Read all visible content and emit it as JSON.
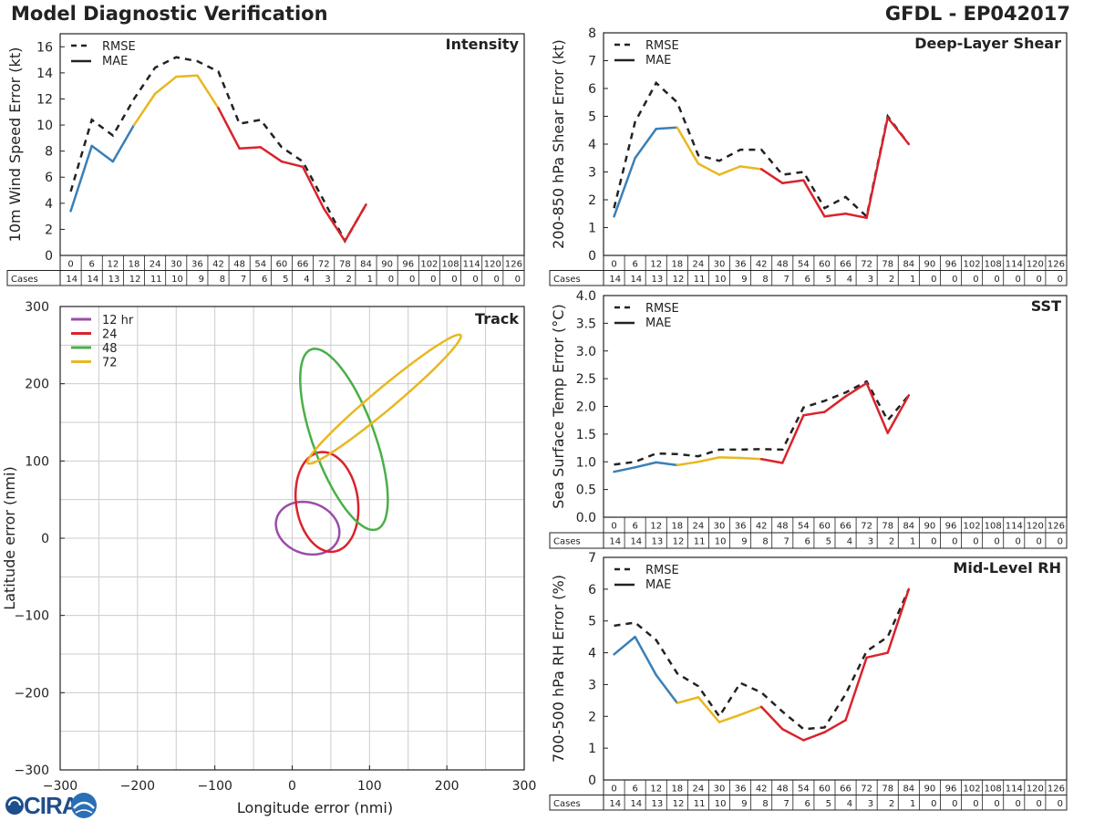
{
  "header": {
    "title": "Model Diagnostic Verification",
    "model_storm": "GFDL - EP042017"
  },
  "logo": {
    "text": "CIRA"
  },
  "colors": {
    "rmse": "#222222",
    "grid": "#cccccc",
    "seg_12h": "#3a7fb7",
    "seg_24h": "#e8b820",
    "seg_48h": "#d9232d",
    "track_12": "#9a4da8",
    "track_24": "#d9232d",
    "track_48": "#4aaf48",
    "track_72": "#e8b820"
  },
  "table": {
    "hours": [
      "0",
      "6",
      "12",
      "18",
      "24",
      "30",
      "36",
      "42",
      "48",
      "54",
      "60",
      "66",
      "72",
      "78",
      "84",
      "90",
      "96",
      "102",
      "108",
      "114",
      "120",
      "126"
    ],
    "cases_label": "Cases",
    "cases": [
      "14",
      "14",
      "13",
      "12",
      "11",
      "10",
      "9",
      "8",
      "7",
      "6",
      "5",
      "4",
      "3",
      "2",
      "1",
      "0",
      "0",
      "0",
      "0",
      "0",
      "0",
      "0"
    ]
  },
  "legend": {
    "rmse": "RMSE",
    "mae": "MAE"
  },
  "chart_data": [
    {
      "id": "intensity",
      "type": "line",
      "title": "Intensity",
      "ylabel": "10m Wind Speed Error (kt)",
      "ylim": [
        0,
        17
      ],
      "yticks": [
        0,
        2,
        4,
        6,
        8,
        10,
        12,
        14,
        16
      ],
      "x_hours": [
        0,
        6,
        12,
        18,
        24,
        30,
        36,
        42,
        48,
        54,
        60,
        66,
        72,
        78,
        84
      ],
      "series": [
        {
          "name": "RMSE",
          "values": [
            4.9,
            10.4,
            9.2,
            12.0,
            14.4,
            15.2,
            14.9,
            14.1,
            10.1,
            10.4,
            8.3,
            7.2,
            4.2,
            1.1,
            3.9
          ]
        },
        {
          "name": "MAE",
          "values": [
            3.4,
            8.4,
            7.2,
            10.0,
            12.4,
            13.7,
            13.8,
            11.3,
            8.2,
            8.3,
            7.2,
            6.8,
            3.6,
            1.1,
            3.9
          ]
        }
      ]
    },
    {
      "id": "shear",
      "type": "line",
      "title": "Deep-Layer Shear",
      "ylabel": "200-850 hPa Shear Error (kt)",
      "ylim": [
        0,
        8
      ],
      "yticks": [
        0,
        1,
        2,
        3,
        4,
        5,
        6,
        7,
        8
      ],
      "x_hours": [
        0,
        6,
        12,
        18,
        24,
        30,
        36,
        42,
        48,
        54,
        60,
        66,
        72,
        78,
        84
      ],
      "series": [
        {
          "name": "RMSE",
          "values": [
            1.7,
            4.8,
            6.2,
            5.5,
            3.6,
            3.4,
            3.8,
            3.8,
            2.9,
            3.0,
            1.7,
            2.1,
            1.4,
            5.0,
            4.0
          ]
        },
        {
          "name": "MAE",
          "values": [
            1.4,
            3.5,
            4.55,
            4.6,
            3.3,
            2.9,
            3.2,
            3.1,
            2.6,
            2.7,
            1.4,
            1.5,
            1.35,
            4.95,
            4.0
          ]
        }
      ]
    },
    {
      "id": "sst",
      "type": "line",
      "title": "SST",
      "ylabel": "Sea Surface Temp Error (°C)",
      "ylim": [
        0,
        4
      ],
      "yticks": [
        "0.0",
        "0.5",
        "1.0",
        "1.5",
        "2.0",
        "2.5",
        "3.0",
        "3.5",
        "4.0"
      ],
      "x_hours": [
        0,
        6,
        12,
        18,
        24,
        30,
        36,
        42,
        48,
        54,
        60,
        66,
        72,
        78,
        84
      ],
      "series": [
        {
          "name": "RMSE",
          "values": [
            0.95,
            1.0,
            1.15,
            1.14,
            1.1,
            1.22,
            1.22,
            1.23,
            1.22,
            1.98,
            2.1,
            2.25,
            2.45,
            1.75,
            2.2
          ]
        },
        {
          "name": "MAE",
          "values": [
            0.82,
            0.9,
            0.99,
            0.94,
            1.0,
            1.08,
            1.07,
            1.05,
            0.98,
            1.84,
            1.9,
            2.18,
            2.42,
            1.52,
            2.2
          ]
        }
      ]
    },
    {
      "id": "rh",
      "type": "line",
      "title": "Mid-Level RH",
      "ylabel": "700-500 hPa RH Error (%)",
      "ylim": [
        0,
        7
      ],
      "yticks": [
        0,
        1,
        2,
        3,
        4,
        5,
        6,
        7
      ],
      "x_hours": [
        0,
        6,
        12,
        18,
        24,
        30,
        36,
        42,
        48,
        54,
        60,
        66,
        72,
        78,
        84
      ],
      "series": [
        {
          "name": "RMSE",
          "values": [
            4.85,
            4.95,
            4.4,
            3.35,
            2.95,
            2.0,
            3.05,
            2.75,
            2.15,
            1.6,
            1.65,
            2.7,
            4.05,
            4.5,
            6.0
          ]
        },
        {
          "name": "MAE",
          "values": [
            3.95,
            4.5,
            3.3,
            2.42,
            2.6,
            1.82,
            2.05,
            2.3,
            1.6,
            1.25,
            1.5,
            1.88,
            3.85,
            4.0,
            6.0
          ]
        }
      ]
    },
    {
      "id": "track",
      "type": "ellipse",
      "title": "Track",
      "xlabel": "Longitude error (nmi)",
      "ylabel": "Latitude error (nmi)",
      "xlim": [
        -300,
        300
      ],
      "ylim": [
        -300,
        300
      ],
      "xticks": [
        "−300",
        "−200",
        "−100",
        "0",
        "100",
        "200",
        "300"
      ],
      "yticks": [
        "−300",
        "−200",
        "−100",
        "0",
        "100",
        "200",
        "300"
      ],
      "ellipses": [
        {
          "name": "12 hr",
          "cx": 20,
          "cy": 13,
          "a": 42,
          "b": 33,
          "angle": -20
        },
        {
          "name": "24",
          "cx": 45,
          "cy": 47,
          "a": 65,
          "b": 40,
          "angle": -82
        },
        {
          "name": "48",
          "cx": 67,
          "cy": 128,
          "a": 124,
          "b": 40,
          "angle": -70
        },
        {
          "name": "72",
          "cx": 119,
          "cy": 180,
          "a": 129,
          "b": 14,
          "angle": 40
        }
      ]
    }
  ]
}
